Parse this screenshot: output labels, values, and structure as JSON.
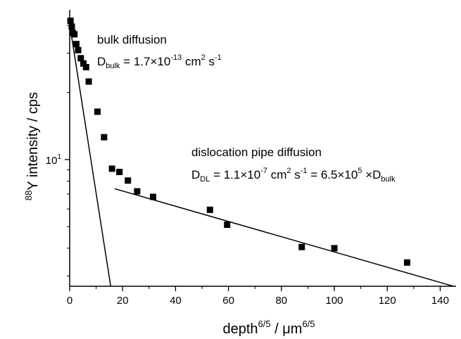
{
  "chart_data": {
    "type": "scatter",
    "title": "",
    "xlabel": {
      "base": "depth",
      "exp1": "6/5",
      "mid": " / μm",
      "exp2": "6/5"
    },
    "ylabel": {
      "pre": "88",
      "rest": "Y intensity / cps"
    },
    "xlim": [
      0,
      146
    ],
    "ylim": [
      2.7,
      47
    ],
    "yscale": "log",
    "grid": false,
    "x_ticks": [
      0,
      20,
      40,
      60,
      80,
      100,
      120,
      140
    ],
    "y_tick_labels": [
      {
        "value": 10,
        "label": "10",
        "exp": "1"
      }
    ],
    "series": [
      {
        "points": [
          [
            0.3,
            42
          ],
          [
            0.8,
            39.5
          ],
          [
            1.2,
            37
          ],
          [
            1.8,
            36.5
          ],
          [
            2.5,
            33
          ],
          [
            3.2,
            31
          ],
          [
            4.2,
            28.5
          ],
          [
            5.2,
            27
          ],
          [
            6.2,
            26
          ],
          [
            7.2,
            22.4
          ],
          [
            10.5,
            16.4
          ],
          [
            13.0,
            12.6
          ],
          [
            16.0,
            9.1
          ],
          [
            18.8,
            8.8
          ],
          [
            22.0,
            8.05
          ],
          [
            25.5,
            7.2
          ],
          [
            31.5,
            6.8
          ],
          [
            53.0,
            5.95
          ],
          [
            59.5,
            5.1
          ],
          [
            87.7,
            4.05
          ],
          [
            100.0,
            4.0
          ],
          [
            127.5,
            3.45
          ]
        ]
      }
    ],
    "fits": [
      {
        "name": "bulk diffusion",
        "x": [
          0,
          15.5
        ],
        "y": [
          40.5,
          2.7
        ]
      },
      {
        "name": "dislocation pipe diffusion",
        "x": [
          17,
          145
        ],
        "y": [
          7.4,
          2.7
        ]
      }
    ],
    "annotations": [
      {
        "id": "bulk_title",
        "text": "bulk diffusion"
      },
      {
        "id": "bulk_eq",
        "d": "D",
        "sub": "bulk",
        "eq": " = 1.7×10",
        "e1": "-13",
        "u1": " cm",
        "e2": "2",
        "u2": " s",
        "e3": "-1"
      },
      {
        "id": "dl_title",
        "text": "dislocation pipe diffusion"
      },
      {
        "id": "dl_eq",
        "d": "D",
        "sub": "DL",
        "eq": " = 1.1×10",
        "e1": "-7",
        "u1": " cm",
        "e2": "2",
        "u2": " s",
        "e3": "-1",
        "eq2": " = 6.5×10",
        "e4": "5",
        "mult": " ×D",
        "sub2": "bulk"
      }
    ]
  }
}
